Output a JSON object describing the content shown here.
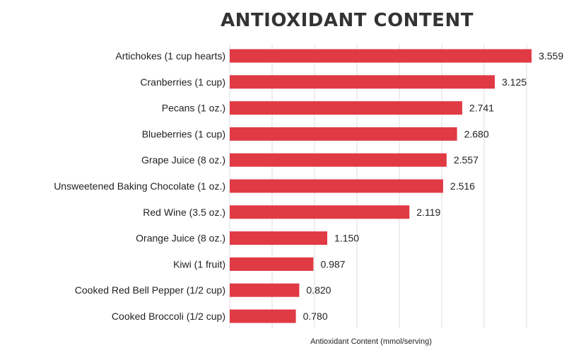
{
  "chart_data": {
    "type": "bar",
    "orientation": "horizontal",
    "title": "ANTIOXIDANT CONTENT",
    "xlabel": "Antioxidant Content (mmol/serving)",
    "ylabel": "",
    "categories": [
      "Artichokes (1 cup hearts)",
      "Cranberries (1 cup)",
      "Pecans (1 oz.)",
      "Blueberries (1 cup)",
      "Grape Juice (8 oz.)",
      "Unsweetened Baking Chocolate (1 oz.)",
      "Red Wine (3.5 oz.)",
      "Orange Juice (8 oz.)",
      "Kiwi (1 fruit)",
      "Cooked Red Bell Pepper (1/2 cup)",
      "Cooked Broccoli (1/2 cup)"
    ],
    "values": [
      3.559,
      3.125,
      2.741,
      2.68,
      2.557,
      2.516,
      2.119,
      1.15,
      0.987,
      0.82,
      0.78
    ],
    "value_labels": [
      "3.559",
      "3.125",
      "2.741",
      "2.680",
      "2.557",
      "2.516",
      "2.119",
      "1.150",
      "0.987",
      "0.820",
      "0.780"
    ],
    "xlim": [
      0,
      3.5
    ],
    "grid": true,
    "legend": "none",
    "bar_color": "#e03a45",
    "grid_color": "#dddddd"
  }
}
